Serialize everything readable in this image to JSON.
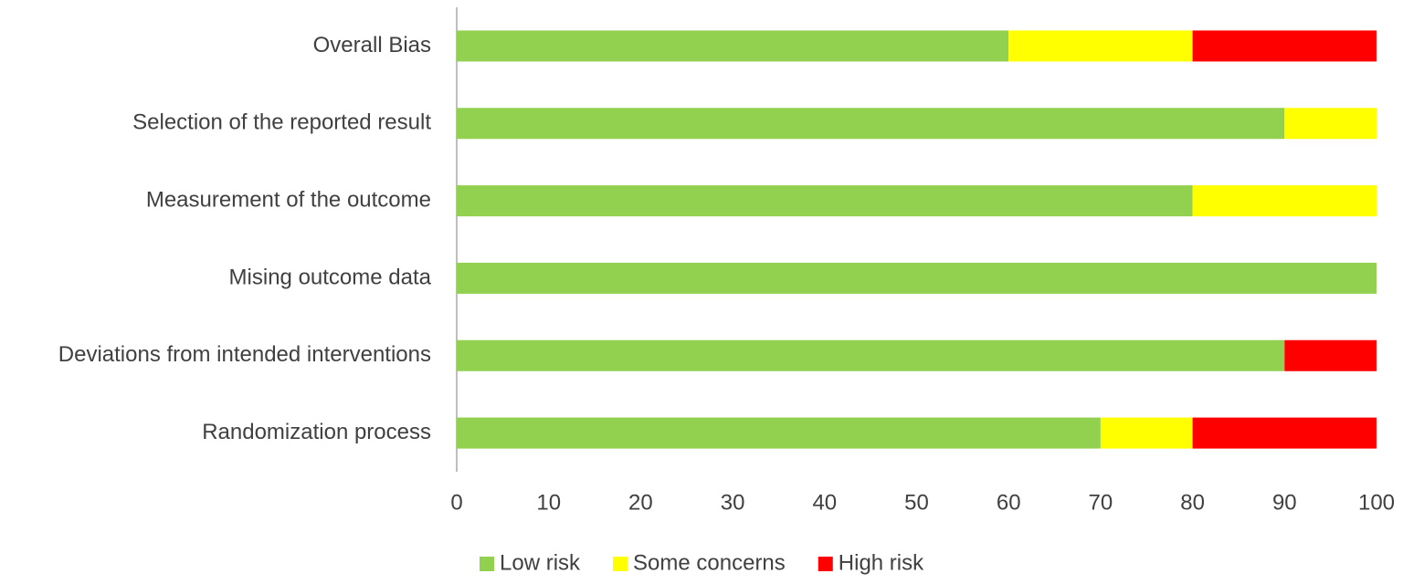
{
  "chart_data": {
    "type": "bar",
    "orientation": "horizontal",
    "stacked": true,
    "categories": [
      "Overall Bias",
      "Selection of the reported result",
      "Measurement of the outcome",
      "Mising outcome data",
      "Deviations from intended interventions",
      "Randomization process"
    ],
    "series": [
      {
        "name": "Low risk",
        "color": "#92d050",
        "values": [
          60,
          90,
          80,
          100,
          90,
          70
        ]
      },
      {
        "name": "Some concerns",
        "color": "#ffff00",
        "values": [
          20,
          10,
          20,
          0,
          0,
          10
        ]
      },
      {
        "name": "High risk",
        "color": "#ff0000",
        "values": [
          20,
          0,
          0,
          0,
          10,
          20
        ]
      }
    ],
    "xlim": [
      0,
      100
    ],
    "xticks": [
      0,
      10,
      20,
      30,
      40,
      50,
      60,
      70,
      80,
      90,
      100
    ],
    "grid": false,
    "legend": "bottom"
  }
}
